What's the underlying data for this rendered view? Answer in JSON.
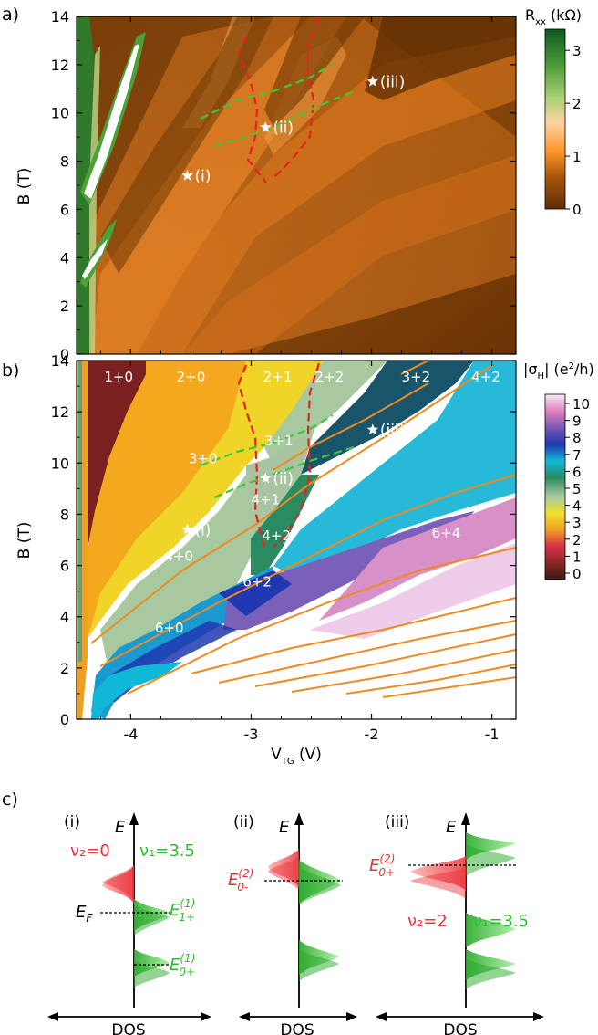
{
  "panel_labels": {
    "a": "a)",
    "b": "b)",
    "c": "c)"
  },
  "chart_data": [
    {
      "type": "heatmap",
      "panel": "a)",
      "ylabel": "B (T)",
      "xlabel": "",
      "xlim": [
        -4.45,
        -0.8
      ],
      "ylim": [
        0,
        14
      ],
      "yticks": [
        "0",
        "2",
        "4",
        "6",
        "8",
        "10",
        "12",
        "14"
      ],
      "colorbar": {
        "title": "R_xx (kΩ)",
        "ticks": [
          "0",
          "1",
          "2",
          "3"
        ],
        "range": [
          0,
          3.4
        ],
        "colors": [
          "#5e2e06",
          "#a8570a",
          "#ff9528",
          "#ffd2a0",
          "#a8d070",
          "#4d9b3a",
          "#0a5a20"
        ]
      },
      "markers": [
        {
          "label": "(i)",
          "x": -3.53,
          "y": 7.4
        },
        {
          "label": "(ii)",
          "x": -2.88,
          "y": 9.4
        },
        {
          "label": "(iii)",
          "x": -1.99,
          "y": 11.3
        }
      ],
      "grid": false
    },
    {
      "type": "heatmap",
      "panel": "b)",
      "ylabel": "B (T)",
      "xlabel": "V_TG (V)",
      "xlim": [
        -4.45,
        -0.8
      ],
      "ylim": [
        0,
        14
      ],
      "xticks": [
        "-4",
        "-3",
        "-2",
        "-1"
      ],
      "yticks": [
        "0",
        "2",
        "4",
        "6",
        "8",
        "10",
        "12",
        "14"
      ],
      "colorbar": {
        "title": "|σ_H| (e²/h)",
        "ticks": [
          "0",
          "1",
          "2",
          "3",
          "4",
          "5",
          "6",
          "7",
          "8",
          "9",
          "10"
        ],
        "colors": [
          "#3a1a14",
          "#8a2828",
          "#d83048",
          "#f0a020",
          "#f0e030",
          "#a8c8a0",
          "#2a8a60",
          "#10b8d8",
          "#2038b0",
          "#7858b0",
          "#e080c0",
          "#f4eef4"
        ]
      },
      "regions": [
        {
          "label": "1+0",
          "x": -4.1,
          "y": 13.4
        },
        {
          "label": "2+0",
          "x": -3.5,
          "y": 13.4
        },
        {
          "label": "2+1",
          "x": -2.78,
          "y": 13.4
        },
        {
          "label": "2+2",
          "x": -2.35,
          "y": 13.4
        },
        {
          "label": "3+2",
          "x": -1.63,
          "y": 13.4
        },
        {
          "label": "4+2",
          "x": -1.05,
          "y": 13.4
        },
        {
          "label": "3+1",
          "x": -2.77,
          "y": 10.9
        },
        {
          "label": "3+0",
          "x": -3.4,
          "y": 10.2
        },
        {
          "label": "4+1",
          "x": -2.88,
          "y": 8.6
        },
        {
          "label": "4+2",
          "x": -2.79,
          "y": 7.2
        },
        {
          "label": "4+0",
          "x": -3.6,
          "y": 6.4
        },
        {
          "label": "6+4",
          "x": -1.38,
          "y": 7.3
        },
        {
          "label": "6+2",
          "x": -2.95,
          "y": 5.4
        },
        {
          "label": "6+0",
          "x": -3.68,
          "y": 3.6
        }
      ],
      "markers": [
        {
          "label": "(i)",
          "x": -3.53,
          "y": 7.4
        },
        {
          "label": "(ii)",
          "x": -2.88,
          "y": 9.4
        },
        {
          "label": "(iii)",
          "x": -1.99,
          "y": 11.3
        }
      ],
      "grid": false
    }
  ],
  "dos_panels": [
    {
      "id": "(i)",
      "axis": "E",
      "dos_label": "DOS",
      "nu2": "ν₂=0",
      "nu1": "ν₁=3.5",
      "ef": "E_F",
      "e1": "E",
      "e1_sup": "(1)",
      "e1_sub": "1+",
      "e2": "E",
      "e2_sup": "(1)",
      "e2_sub": "0+"
    },
    {
      "id": "(ii)",
      "axis": "E",
      "dos_label": "DOS",
      "e": "E",
      "e_sup": "(2)",
      "e_sub": "0-"
    },
    {
      "id": "(iii)",
      "axis": "E",
      "dos_label": "DOS",
      "nu2": "ν₂=2",
      "nu1": "ν₁=3.5",
      "e": "E",
      "e_sup": "(2)",
      "e_sub": "0+"
    }
  ],
  "colors": {
    "red": "#e8343a",
    "green": "#2bc02b",
    "orange": "#e87722",
    "dashed_red": "#e82020",
    "dashed_green": "#3cc83c"
  }
}
